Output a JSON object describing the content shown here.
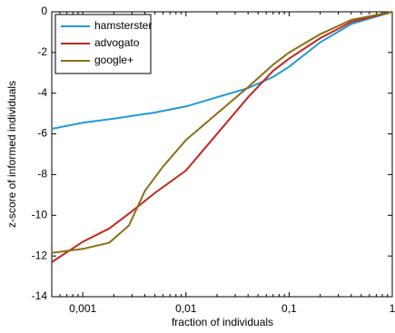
{
  "chart_data": {
    "type": "line",
    "x_label": "fraction of individuals",
    "y_label": "z-score of informed individuals",
    "xscale": "log",
    "xlim": [
      0.0005,
      1
    ],
    "ylim": [
      -14,
      0
    ],
    "xticks": [
      {
        "value": 0.001,
        "label": "0,001"
      },
      {
        "value": 0.01,
        "label": "0,01"
      },
      {
        "value": 0.1,
        "label": "0,1"
      },
      1
    ],
    "yticks": [
      -14,
      -12,
      -10,
      -8,
      -6,
      -4,
      -2,
      0
    ],
    "legend": "upper left",
    "series": [
      {
        "name": "hamsterster",
        "color": "#1f9ad6",
        "x": [
          0.0005,
          0.001,
          0.002,
          0.005,
          0.01,
          0.02,
          0.04,
          0.07,
          0.1,
          0.2,
          0.4,
          1
        ],
        "values": [
          -5.75,
          -5.45,
          -5.25,
          -4.95,
          -4.65,
          -4.2,
          -3.75,
          -3.2,
          -2.7,
          -1.5,
          -0.6,
          0
        ]
      },
      {
        "name": "advogato",
        "color": "#c0281a",
        "x": [
          0.0005,
          0.001,
          0.0018,
          0.003,
          0.005,
          0.01,
          0.02,
          0.04,
          0.07,
          0.1,
          0.2,
          0.4,
          1
        ],
        "values": [
          -12.3,
          -11.3,
          -10.65,
          -9.8,
          -8.9,
          -7.8,
          -6.0,
          -4.2,
          -2.9,
          -2.3,
          -1.3,
          -0.5,
          0
        ]
      },
      {
        "name": "google+",
        "color": "#8d6e14",
        "x": [
          0.0005,
          0.001,
          0.0018,
          0.0028,
          0.004,
          0.006,
          0.01,
          0.02,
          0.04,
          0.07,
          0.1,
          0.2,
          0.4,
          1
        ],
        "values": [
          -11.85,
          -11.65,
          -11.35,
          -10.5,
          -8.8,
          -7.6,
          -6.3,
          -5.0,
          -3.7,
          -2.6,
          -2.0,
          -1.1,
          -0.4,
          0
        ]
      }
    ]
  }
}
